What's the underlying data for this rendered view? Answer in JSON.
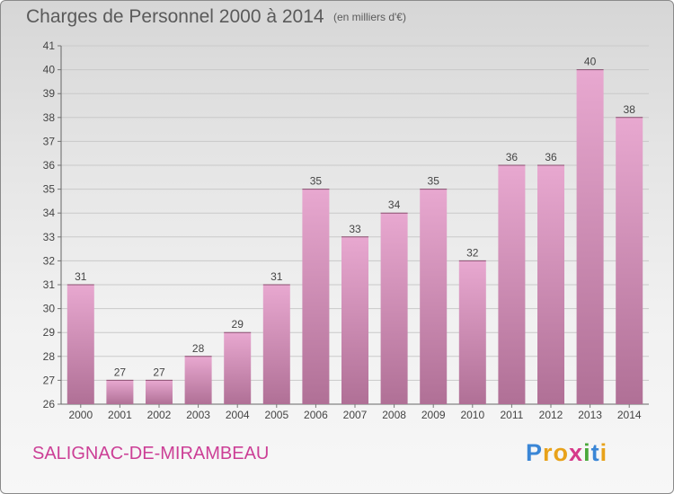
{
  "header": {
    "title": "Charges de Personnel 2000 à 2014",
    "subtitle": "(en milliers d'€)"
  },
  "footer": {
    "commune": "SALIGNAC-DE-MIRAMBEAU",
    "logo_letters": [
      "P",
      "r",
      "o",
      "x",
      "i",
      "t",
      "i"
    ],
    "logo_colors": [
      "#3a86d6",
      "#e8a21a",
      "#e8a21a",
      "#d63a8a",
      "#4aa83a",
      "#3a86d6",
      "#e8a21a"
    ]
  },
  "colors": {
    "bar_light": "#e8a8d0",
    "bar_dark": "#b07096",
    "commune_text": "#cc3f96"
  },
  "chart_data": {
    "type": "bar",
    "title": "Charges de Personnel 2000 à 2014",
    "subtitle": "(en milliers d'€)",
    "categories": [
      "2000",
      "2001",
      "2002",
      "2003",
      "2004",
      "2005",
      "2006",
      "2007",
      "2008",
      "2009",
      "2010",
      "2011",
      "2012",
      "2013",
      "2014"
    ],
    "values": [
      31,
      27,
      27,
      28,
      29,
      31,
      35,
      33,
      34,
      35,
      32,
      36,
      36,
      40,
      38
    ],
    "ylim": [
      26,
      41
    ],
    "yticks": [
      26,
      27,
      28,
      29,
      30,
      31,
      32,
      33,
      34,
      35,
      36,
      37,
      38,
      39,
      40,
      41
    ],
    "grid": true,
    "xlabel": "",
    "ylabel": ""
  }
}
